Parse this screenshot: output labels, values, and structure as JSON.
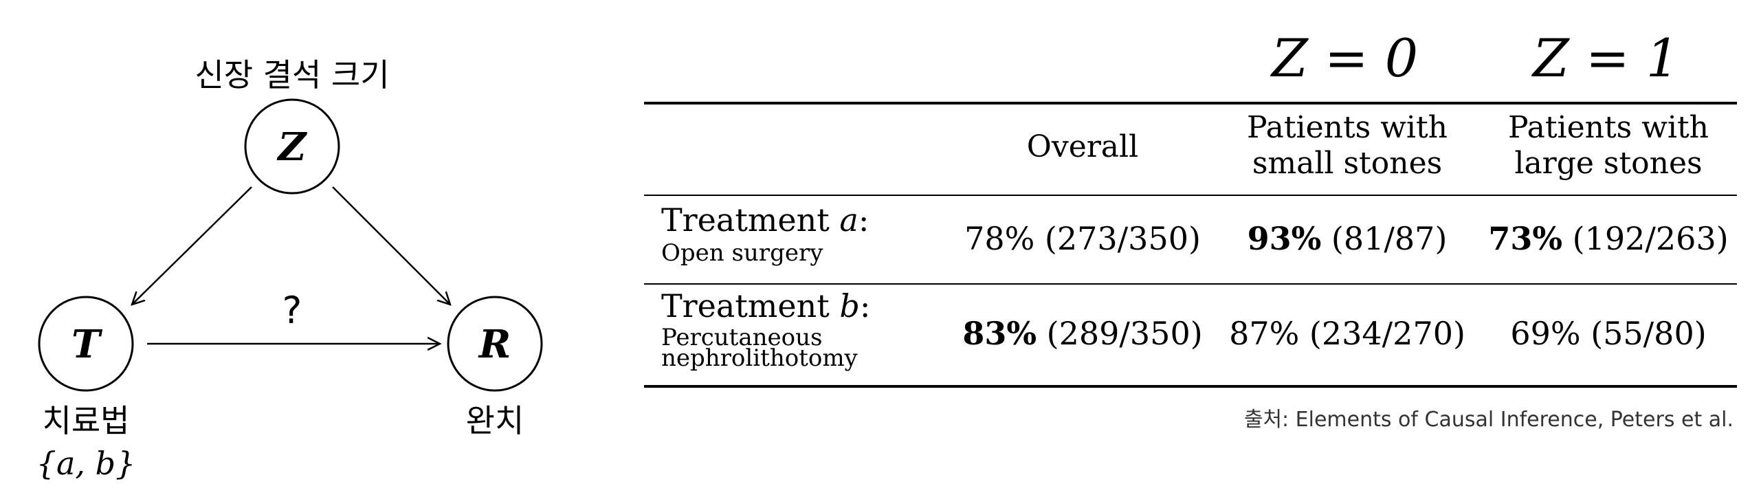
{
  "diagram": {
    "nodes": {
      "z": {
        "symbol": "Z",
        "label": "신장 결석 크기"
      },
      "t": {
        "symbol": "T",
        "label": "치료법",
        "domain": "{a, b}"
      },
      "r": {
        "symbol": "R",
        "label": "완치"
      }
    },
    "edges": [
      {
        "from": "Z",
        "to": "T"
      },
      {
        "from": "Z",
        "to": "R"
      },
      {
        "from": "T",
        "to": "R",
        "label": "?"
      }
    ]
  },
  "table": {
    "z_headers": {
      "z0": "Z = 0",
      "z1": "Z = 1"
    },
    "columns": {
      "overall": "Overall",
      "small_line1": "Patients with",
      "small_line2": "small stones",
      "large_line1": "Patients with",
      "large_line2": "large stones"
    },
    "rows": [
      {
        "treatment": "Treatment ",
        "treatment_var": "a",
        "treatment_colon": ":",
        "desc_line1": "Open surgery",
        "desc_line2": "",
        "overall_pct": "78%",
        "overall_frac": " (273/350)",
        "small_pct": "93%",
        "small_frac": " (81/87)",
        "large_pct": "73%",
        "large_frac": " (192/263)"
      },
      {
        "treatment": "Treatment ",
        "treatment_var": "b",
        "treatment_colon": ":",
        "desc_line1": "Percutaneous",
        "desc_line2": "nephrolithotomy",
        "overall_pct": "83%",
        "overall_frac": " (289/350)",
        "small_pct": "87%",
        "small_frac": " (234/270)",
        "large_pct": "69%",
        "large_frac": " (55/80)"
      }
    ],
    "source": "출처: Elements of Causal Inference, Peters et al."
  },
  "colors": {
    "ink": "#000000",
    "source": "#333333"
  }
}
